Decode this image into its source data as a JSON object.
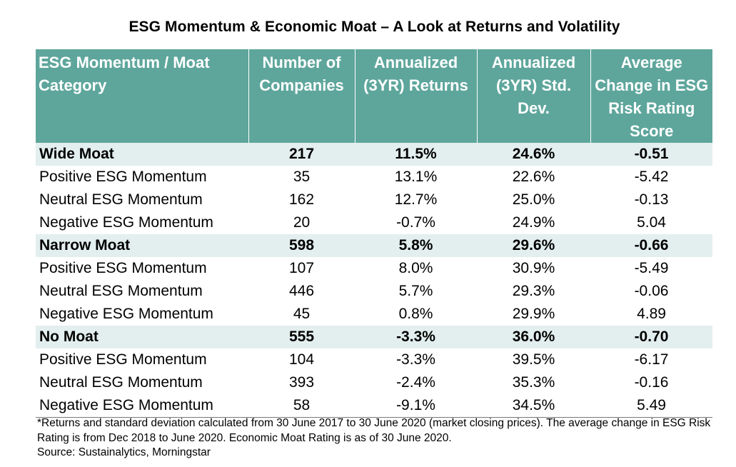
{
  "chart_data": {
    "type": "table",
    "title": "ESG Momentum & Economic Moat – A Look at Returns and Volatility",
    "columns": [
      "ESG Momentum / Moat Category",
      "Number of Companies",
      "Annualized (3YR) Returns",
      "Annualized (3YR) Std. Dev.",
      "Average Change in ESG Risk Rating Score"
    ],
    "rows": [
      {
        "category": "Wide Moat",
        "group": true,
        "companies": "217",
        "returns": "11.5%",
        "std_dev": "24.6%",
        "esg_change": "-0.51"
      },
      {
        "category": "Positive ESG Momentum",
        "group": false,
        "companies": "35",
        "returns": "13.1%",
        "std_dev": "22.6%",
        "esg_change": "-5.42"
      },
      {
        "category": "Neutral ESG Momentum",
        "group": false,
        "companies": "162",
        "returns": "12.7%",
        "std_dev": "25.0%",
        "esg_change": "-0.13"
      },
      {
        "category": "Negative ESG Momentum",
        "group": false,
        "companies": "20",
        "returns": "-0.7%",
        "std_dev": "24.9%",
        "esg_change": "5.04"
      },
      {
        "category": "Narrow Moat",
        "group": true,
        "companies": "598",
        "returns": "5.8%",
        "std_dev": "29.6%",
        "esg_change": "-0.66"
      },
      {
        "category": "Positive ESG Momentum",
        "group": false,
        "companies": "107",
        "returns": "8.0%",
        "std_dev": "30.9%",
        "esg_change": "-5.49"
      },
      {
        "category": "Neutral ESG Momentum",
        "group": false,
        "companies": "446",
        "returns": "5.7%",
        "std_dev": "29.3%",
        "esg_change": "-0.06"
      },
      {
        "category": "Negative ESG Momentum",
        "group": false,
        "companies": "45",
        "returns": "0.8%",
        "std_dev": "29.9%",
        "esg_change": "4.89"
      },
      {
        "category": "No Moat",
        "group": true,
        "companies": "555",
        "returns": "-3.3%",
        "std_dev": "36.0%",
        "esg_change": "-0.70"
      },
      {
        "category": "Positive ESG Momentum",
        "group": false,
        "companies": "104",
        "returns": "-3.3%",
        "std_dev": "39.5%",
        "esg_change": "-6.17"
      },
      {
        "category": "Neutral ESG Momentum",
        "group": false,
        "companies": "393",
        "returns": "-2.4%",
        "std_dev": "35.3%",
        "esg_change": "-0.16"
      },
      {
        "category": "Negative ESG Momentum",
        "group": false,
        "companies": "58",
        "returns": "-9.1%",
        "std_dev": "34.5%",
        "esg_change": "5.49"
      }
    ],
    "footnote": "*Returns and standard deviation calculated from 30 June 2017 to 30 June 2020 (market closing prices). The average change in ESG Risk Rating is from Dec 2018 to June 2020. Economic Moat Rating is as of 30 June 2020.",
    "source": "Source: Sustainalytics, Morningstar"
  },
  "colors": {
    "header_bg": "#5ea69c",
    "header_text": "#ffffff",
    "group_row_bg": "#e3efee"
  }
}
